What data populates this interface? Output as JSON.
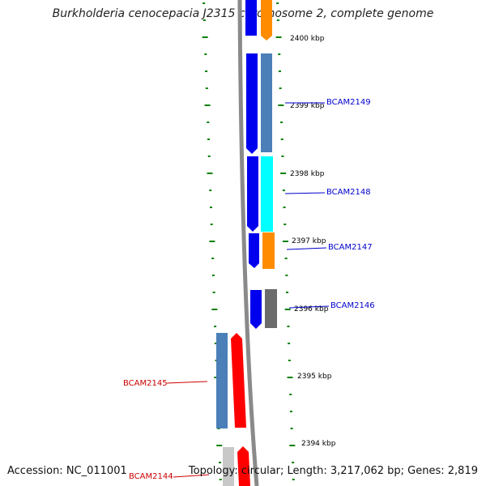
{
  "title": "Burkholderia cenocepacia J2315 chromosome 2, complete genome",
  "footer": {
    "accession": "Accession: NC_011001",
    "summary": "Topology: circular; Length: 3,217,062 bp; Genes: 2,819"
  },
  "scale_labels": [
    "2400 kbp",
    "2399 kbp",
    "2398 kbp",
    "2397 kbp",
    "2396 kbp",
    "2395 kbp",
    "2394 kbp"
  ],
  "gene_labels": [
    "BCAM2149",
    "BCAM2148",
    "BCAM2147",
    "BCAM2146",
    "BCAM2145",
    "BCAM2144"
  ],
  "colors": {
    "forward_label": "#0000cc",
    "reverse_label": "#cc0000",
    "cds_blue": "#0000ee",
    "steel_blue": "#4a7fb8",
    "cyan": "#00ffff",
    "orange": "#ff8c00",
    "gray": "#6b6b6b",
    "red": "#ff0000",
    "light_gray": "#c8c8c8",
    "tick_green": "#008000",
    "backbone": "#8a8a8a"
  }
}
